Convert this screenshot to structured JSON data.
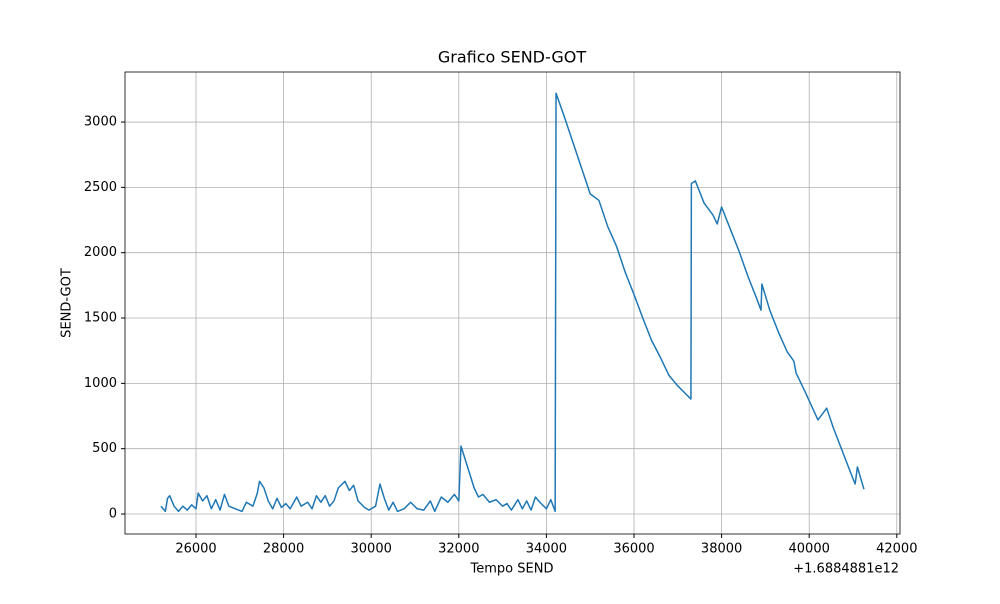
{
  "chart_data": {
    "type": "line",
    "title": "Grafico SEND-GOT",
    "x_label": "Tempo SEND",
    "y_label": "SEND-GOT",
    "x_offset_label": "+1.6884881e12",
    "x": [
      25200,
      25300,
      25350,
      25400,
      25500,
      25600,
      25700,
      25800,
      25900,
      26000,
      26050,
      26150,
      26250,
      26350,
      26450,
      26550,
      26650,
      26750,
      26900,
      27050,
      27150,
      27300,
      27400,
      27450,
      27550,
      27650,
      27750,
      27850,
      27950,
      28050,
      28150,
      28300,
      28400,
      28550,
      28650,
      28750,
      28850,
      28950,
      29050,
      29150,
      29250,
      29400,
      29500,
      29600,
      29700,
      29850,
      29950,
      30100,
      30200,
      30300,
      30400,
      30500,
      30600,
      30750,
      30900,
      31050,
      31200,
      31350,
      31450,
      31600,
      31750,
      31900,
      32000,
      32050,
      32200,
      32350,
      32450,
      32550,
      32700,
      32850,
      33000,
      33100,
      33200,
      33350,
      33450,
      33550,
      33650,
      33750,
      33850,
      34000,
      34100,
      34200,
      34220,
      34400,
      34600,
      34800,
      35000,
      35200,
      35400,
      35600,
      35800,
      36000,
      36200,
      36400,
      36600,
      36800,
      37000,
      37150,
      37300,
      37310,
      37400,
      37600,
      37800,
      37900,
      38000,
      38200,
      38400,
      38600,
      38800,
      38900,
      38920,
      39100,
      39300,
      39500,
      39650,
      39700,
      39900,
      40050,
      40200,
      40400,
      40550,
      40700,
      40850,
      41000,
      41050,
      41100,
      41250
    ],
    "series": [
      {
        "name": "SEND-GOT",
        "color": "#1f77b4",
        "values": [
          60,
          20,
          120,
          140,
          60,
          20,
          60,
          30,
          70,
          40,
          160,
          100,
          140,
          40,
          110,
          30,
          150,
          60,
          40,
          20,
          90,
          60,
          160,
          250,
          200,
          100,
          40,
          120,
          50,
          80,
          40,
          130,
          60,
          90,
          40,
          140,
          90,
          140,
          60,
          100,
          200,
          250,
          180,
          220,
          100,
          50,
          30,
          60,
          230,
          120,
          30,
          90,
          20,
          40,
          90,
          40,
          30,
          100,
          20,
          130,
          90,
          150,
          100,
          520,
          360,
          200,
          130,
          150,
          90,
          110,
          60,
          80,
          30,
          110,
          40,
          100,
          30,
          130,
          90,
          40,
          110,
          20,
          3220,
          3050,
          2850,
          2650,
          2450,
          2400,
          2200,
          2050,
          1850,
          1680,
          1500,
          1330,
          1200,
          1060,
          980,
          930,
          880,
          2530,
          2550,
          2380,
          2290,
          2220,
          2350,
          2180,
          2010,
          1820,
          1650,
          1560,
          1760,
          1560,
          1390,
          1240,
          1170,
          1080,
          940,
          830,
          720,
          810,
          660,
          530,
          400,
          270,
          230,
          360,
          190
        ]
      }
    ],
    "xlim": [
      24379,
      42073
    ],
    "ylim": [
      -153,
      3383
    ],
    "xticks": [
      26000,
      28000,
      30000,
      32000,
      34000,
      36000,
      38000,
      40000,
      42000
    ],
    "yticks": [
      0,
      500,
      1000,
      1500,
      2000,
      2500,
      3000
    ],
    "grid": true
  }
}
